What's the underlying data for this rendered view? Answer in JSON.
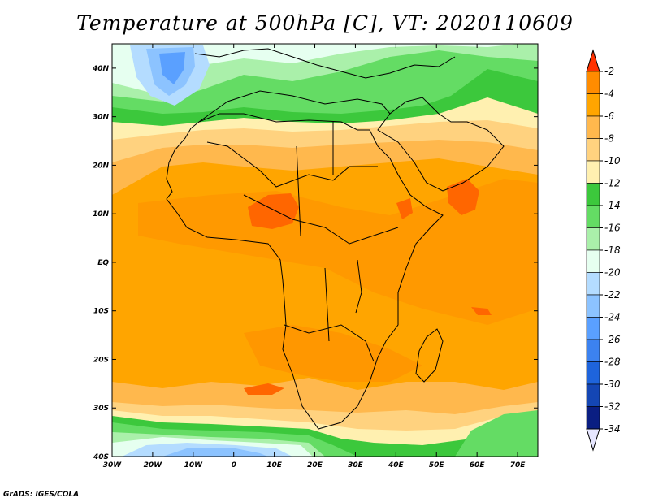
{
  "title": "Temperature at 500hPa [C], VT: 2020110609",
  "credit": "GrADS: IGES/COLA",
  "map": {
    "lon_range": [
      -30,
      75
    ],
    "lat_range": [
      -40,
      45
    ],
    "x_ticks": [
      {
        "lon": -30,
        "label": "30W"
      },
      {
        "lon": -20,
        "label": "20W"
      },
      {
        "lon": -10,
        "label": "10W"
      },
      {
        "lon": 0,
        "label": "0"
      },
      {
        "lon": 10,
        "label": "10E"
      },
      {
        "lon": 20,
        "label": "20E"
      },
      {
        "lon": 30,
        "label": "30E"
      },
      {
        "lon": 40,
        "label": "40E"
      },
      {
        "lon": 50,
        "label": "50E"
      },
      {
        "lon": 60,
        "label": "60E"
      },
      {
        "lon": 70,
        "label": "70E"
      }
    ],
    "y_ticks": [
      {
        "lat": 40,
        "label": "40N"
      },
      {
        "lat": 30,
        "label": "30N"
      },
      {
        "lat": 20,
        "label": "20N"
      },
      {
        "lat": 10,
        "label": "10N"
      },
      {
        "lat": 0,
        "label": "EQ"
      },
      {
        "lat": -10,
        "label": "10S"
      },
      {
        "lat": -20,
        "label": "20S"
      },
      {
        "lat": -30,
        "label": "30S"
      },
      {
        "lat": -40,
        "label": "40S"
      }
    ]
  },
  "colorbar": {
    "levels": [
      {
        "label": "-2",
        "color": "#ff6600"
      },
      {
        "label": "-4",
        "color": "#ff8c00"
      },
      {
        "label": "-6",
        "color": "#ffa500"
      },
      {
        "label": "-8",
        "color": "#ffb84d"
      },
      {
        "label": "-10",
        "color": "#ffd27f"
      },
      {
        "label": "-12",
        "color": "#fff0b0"
      },
      {
        "label": "-14",
        "color": "#3cc83c"
      },
      {
        "label": "-16",
        "color": "#64dc64"
      },
      {
        "label": "-18",
        "color": "#aaf0aa"
      },
      {
        "label": "-20",
        "color": "#e6fff0"
      },
      {
        "label": "-22",
        "color": "#b4dcff"
      },
      {
        "label": "-24",
        "color": "#8cc3ff"
      },
      {
        "label": "-26",
        "color": "#5aa0ff"
      },
      {
        "label": "-28",
        "color": "#3c82f0"
      },
      {
        "label": "-30",
        "color": "#1e64dc"
      },
      {
        "label": "-32",
        "color": "#1446b4"
      },
      {
        "label": "-34",
        "color": "#0a1e82"
      }
    ],
    "top_arrow_color": "#ff3200",
    "bottom_arrow_color": "#e6e6ff"
  }
}
